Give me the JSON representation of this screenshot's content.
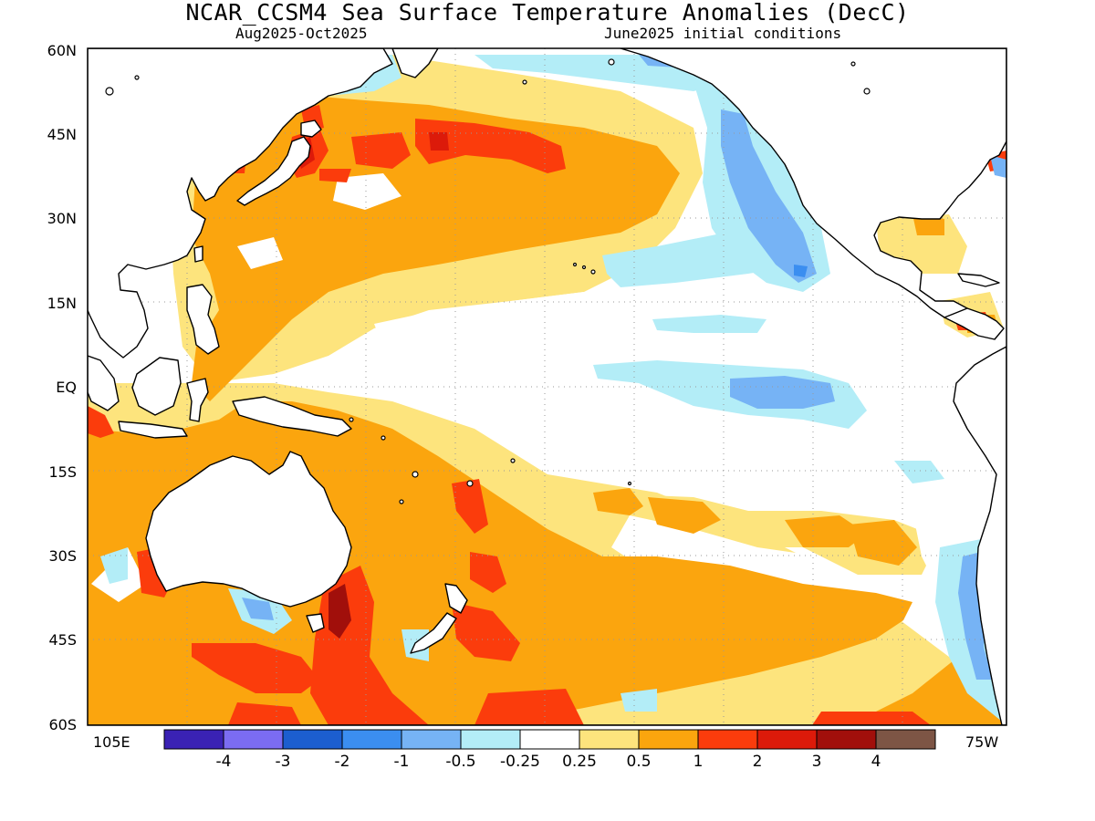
{
  "title": "NCAR_CCSM4 Sea Surface Temperature Anomalies (DecC)",
  "subtitle_left": "Aug2025-Oct2025",
  "subtitle_right": "June2025 initial conditions",
  "lat_labels": [
    "60N",
    "45N",
    "30N",
    "15N",
    "EQ",
    "15S",
    "30S",
    "45S",
    "60S"
  ],
  "lon_left_label": "105E",
  "lon_right_label": "75W",
  "colorbar": {
    "colors": [
      "#3a22b4",
      "#7b6cf2",
      "#1c5ecf",
      "#3b8ef0",
      "#76b3f5",
      "#b3edf7",
      "#ffffff",
      "#fde47d",
      "#fba50e",
      "#fb3c0c",
      "#dc1a0a",
      "#a10f0b",
      "#7d5545"
    ],
    "labels": [
      "-4",
      "-3",
      "-2",
      "-1",
      "-0.5",
      "-0.25",
      "0.25",
      "0.5",
      "1",
      "2",
      "3",
      "4"
    ]
  }
}
